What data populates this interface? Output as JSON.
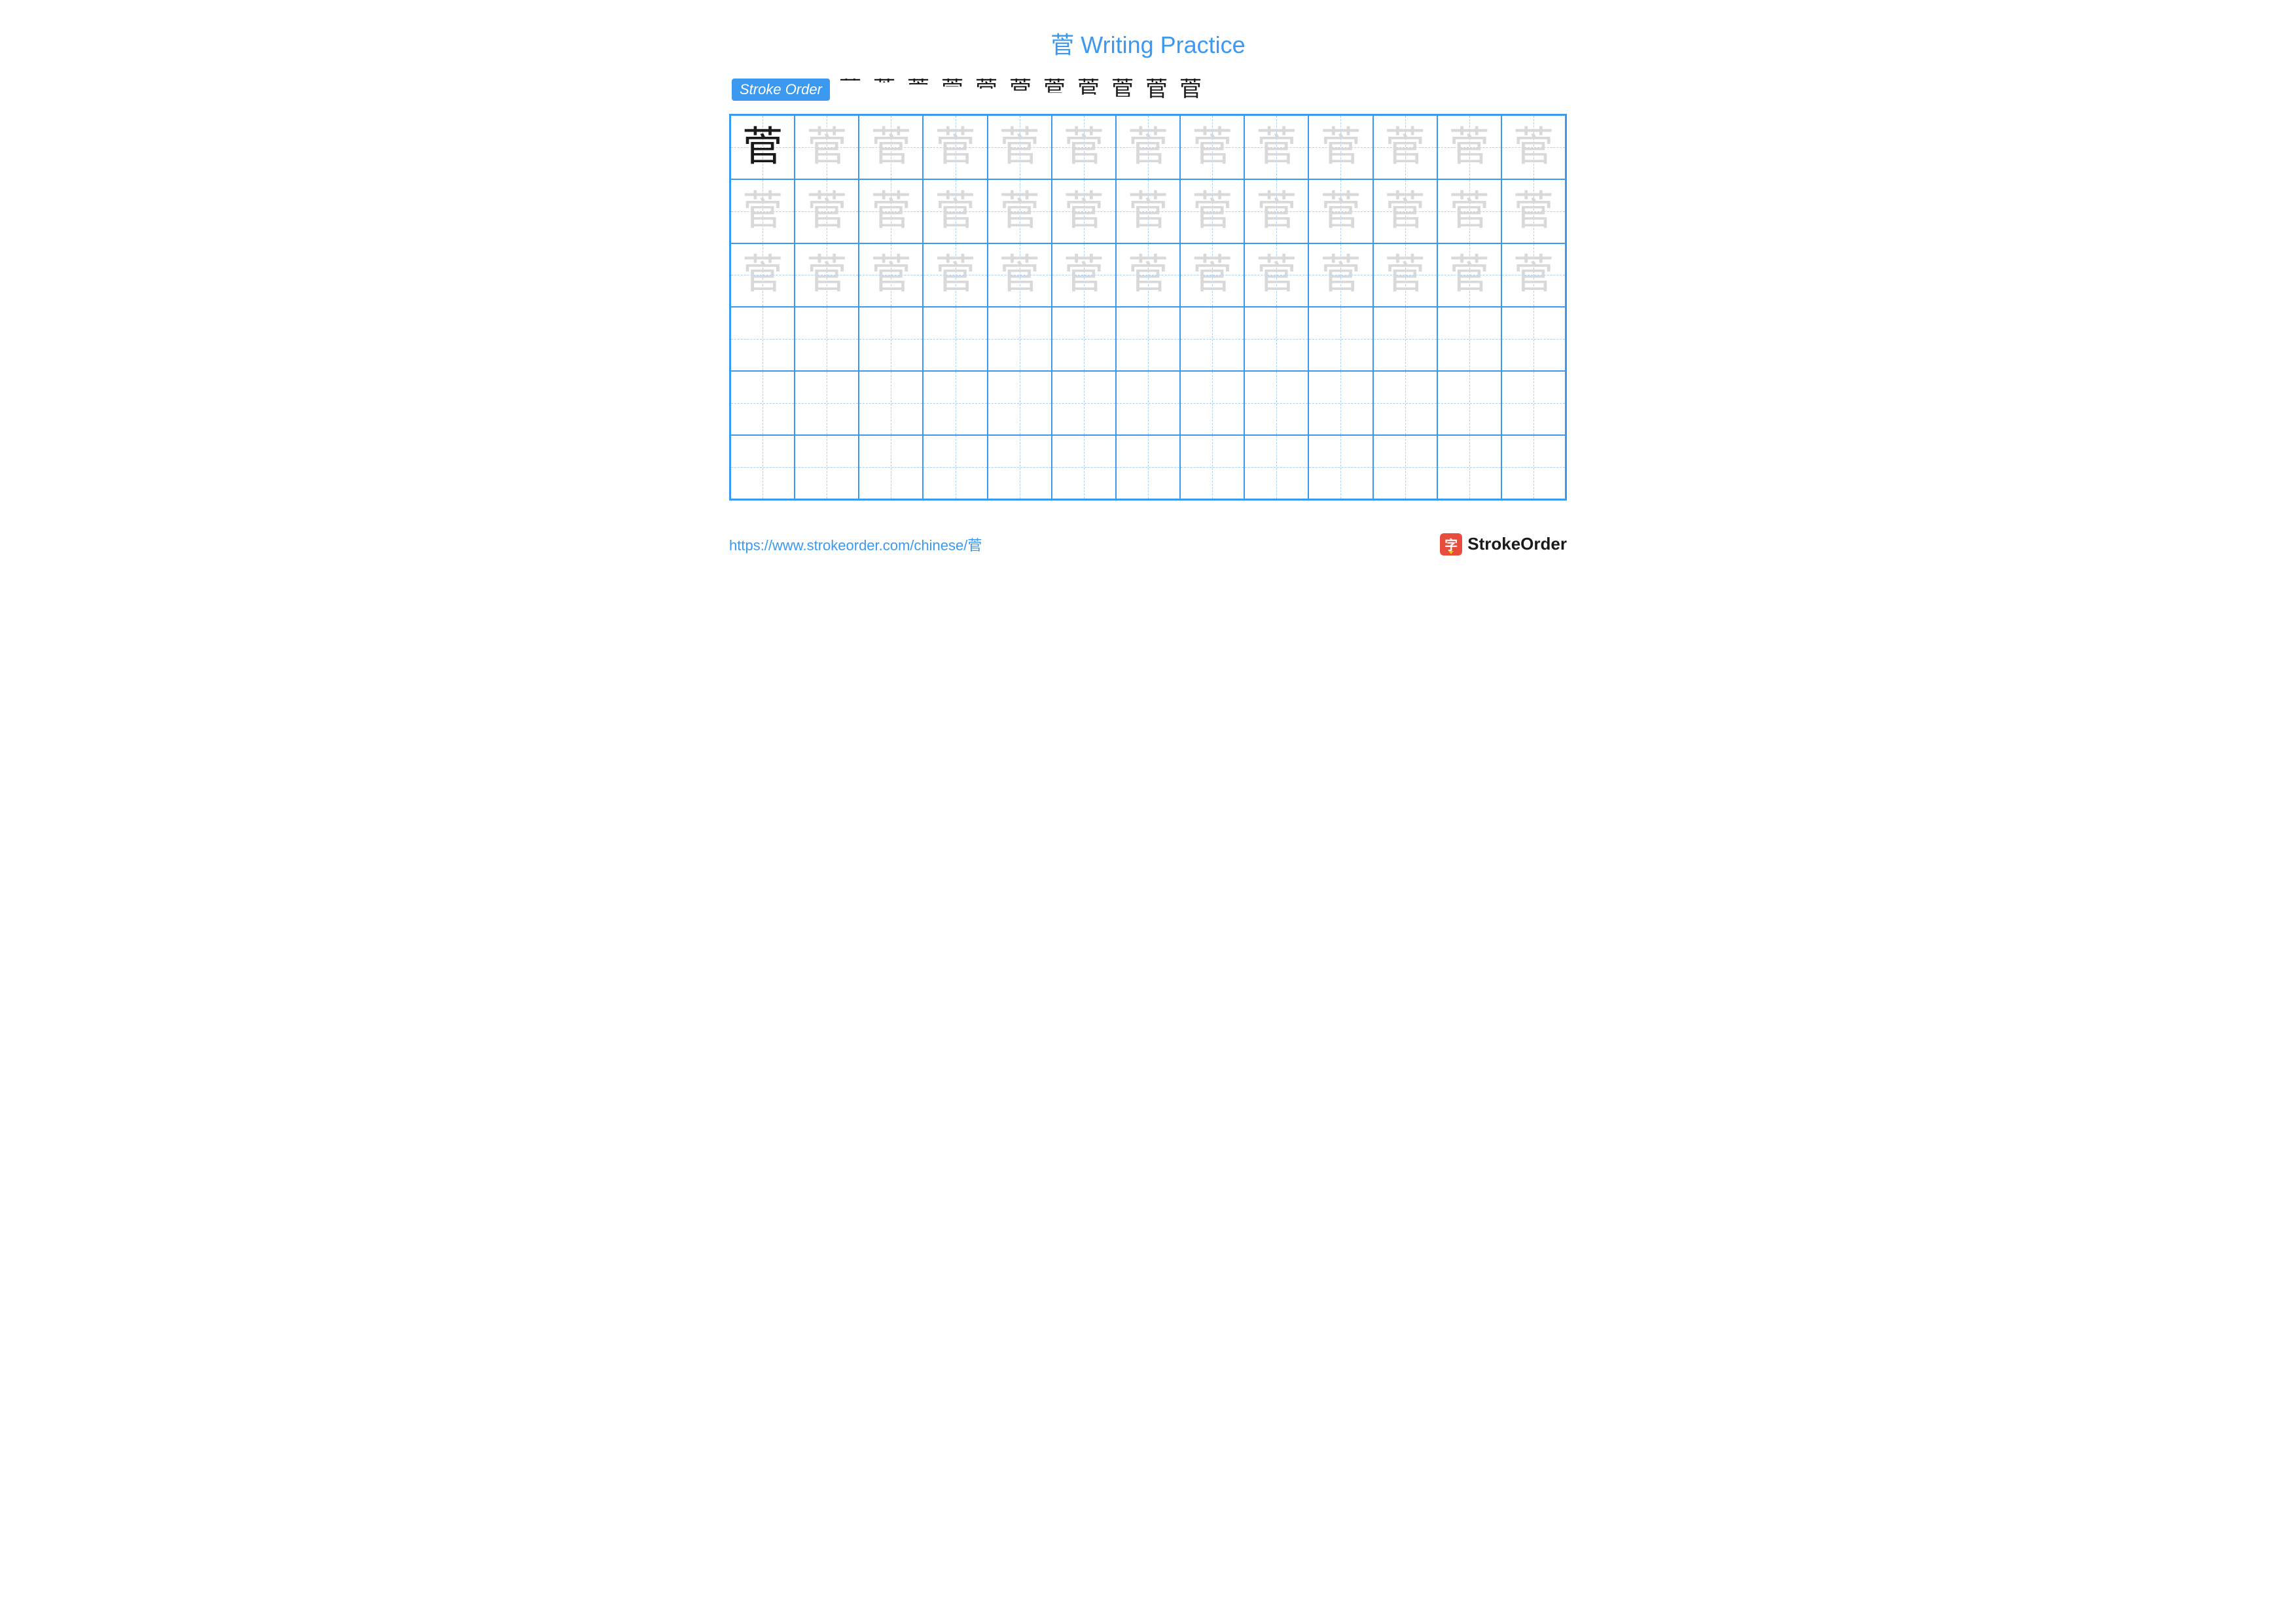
{
  "character": "菅",
  "title": "菅 Writing Practice",
  "title_color": "#3b99f0",
  "stroke_label": "Stroke Order",
  "stroke_label_bg": "#3b99f0",
  "stroke_label_color": "#ffffff",
  "stroke_steps_count": 11,
  "stroke_step_color_done": "#1a1a1a",
  "stroke_step_color_new": "#e74c3c",
  "grid": {
    "cols": 13,
    "rows": 6,
    "border_color": "#3b99f0",
    "guide_color": "#a8d0f7",
    "model_cells": [
      [
        0,
        0
      ]
    ],
    "trace_rows": [
      0,
      1,
      2
    ],
    "empty_rows": [
      3,
      4,
      5
    ],
    "model_color": "#1a1a1a",
    "trace_color": "#d9d9d9",
    "glyph_fontsize": 62
  },
  "footer": {
    "url": "https://www.strokeorder.com/chinese/菅",
    "url_color": "#3b99f0",
    "brand_text": "StrokeOrder",
    "brand_icon_char": "字",
    "brand_icon_bg": "#e74c3c",
    "brand_icon_color": "#ffffff"
  },
  "background_color": "#ffffff"
}
